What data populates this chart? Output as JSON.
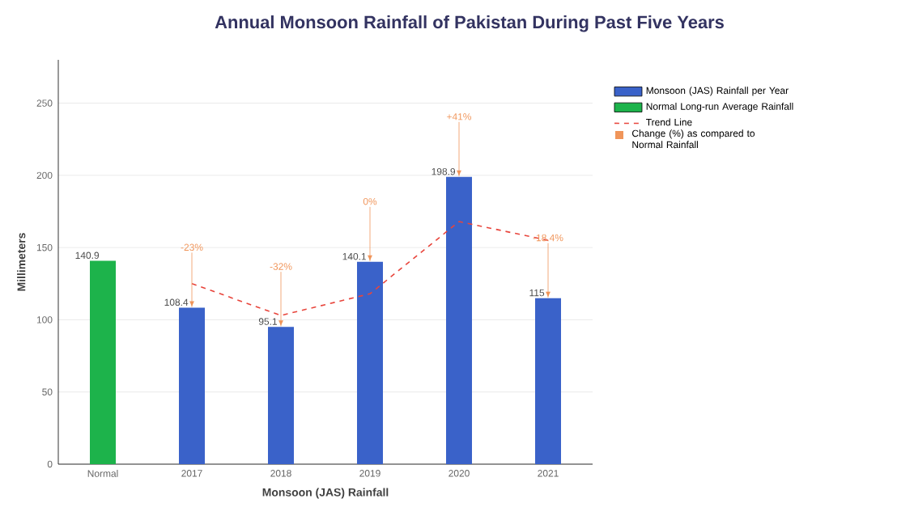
{
  "chart_data": {
    "type": "bar",
    "title": "Annual Monsoon Rainfall of Pakistan During Past Five Years",
    "xlabel": "Monsoon (JAS) Rainfall",
    "ylabel": "Millimeters",
    "categories": [
      "Normal",
      "2017",
      "2018",
      "2019",
      "2020",
      "2021"
    ],
    "series": [
      {
        "name": "Monsoon (JAS) Rainfall per Year",
        "color": "#3a62c9",
        "values": [
          null,
          108.4,
          95.1,
          140.1,
          198.9,
          115
        ],
        "value_labels": [
          null,
          "108.4",
          "95.1",
          "140.1",
          "198.9",
          "115"
        ]
      },
      {
        "name": "Normal Long-run Average Rainfall",
        "color": "#1db34b",
        "values": [
          140.9,
          null,
          null,
          null,
          null,
          null
        ],
        "value_labels": [
          "140.9",
          null,
          null,
          null,
          null,
          null
        ]
      },
      {
        "name": "Trend Line",
        "type": "line",
        "color": "#e8453c",
        "line_style": "dashed",
        "marker": "none",
        "values": [
          null,
          125,
          103,
          118,
          168,
          155
        ]
      }
    ],
    "annotations": [
      {
        "text": "-23%",
        "x": "2017",
        "y": 108.4
      },
      {
        "text": "-32%",
        "x": "2018",
        "y": 95.1
      },
      {
        "text": "0%",
        "x": "2019",
        "y": 140.1
      },
      {
        "text": "+41%",
        "x": "2020",
        "y": 198.9
      },
      {
        "text": "-18.4%",
        "x": "2021",
        "y": 115
      },
      "Change (%) as compared to Normal Rainfall"
    ],
    "ylim": [
      0,
      280
    ],
    "yticks": [
      0,
      50,
      100,
      150,
      200,
      250
    ],
    "grid": "y",
    "legend": "right"
  }
}
